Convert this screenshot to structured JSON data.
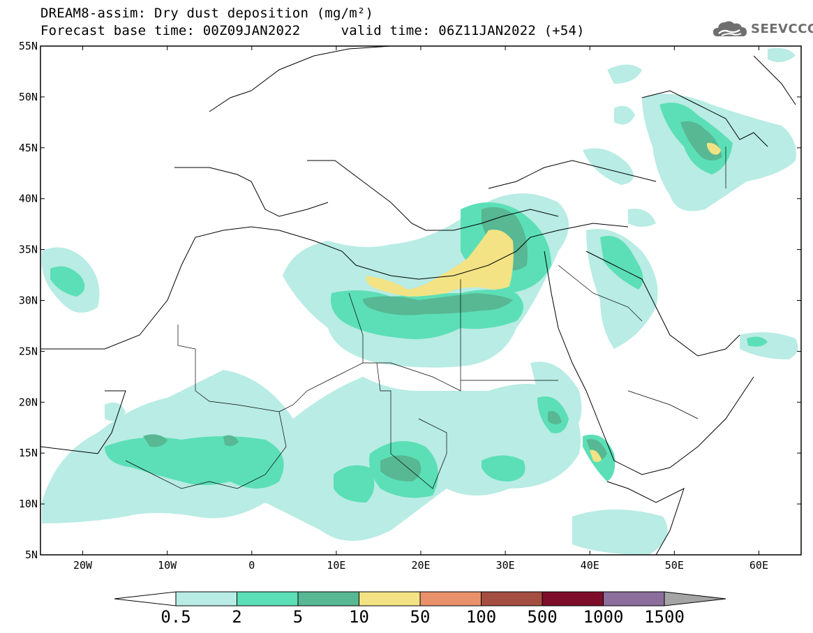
{
  "title": {
    "line1": "DREAM8-assim: Dry dust deposition (mg/m²)",
    "line2": "Forecast base time: 00Z09JAN2022     valid time: 06Z11JAN2022 (+54)"
  },
  "brand": {
    "name": "SEEVCCC",
    "icon": "cloud-logo-icon"
  },
  "map": {
    "lon_range": [
      -25,
      65
    ],
    "lat_range": [
      5,
      55
    ],
    "lon_ticks": [
      "20W",
      "10W",
      "0",
      "10E",
      "20E",
      "30E",
      "40E",
      "50E",
      "60E"
    ],
    "lat_ticks": [
      "5N",
      "10N",
      "15N",
      "20N",
      "25N",
      "30N",
      "35N",
      "40N",
      "45N",
      "50N",
      "55N"
    ]
  },
  "colorbar": {
    "levels": [
      "0.5",
      "2",
      "5",
      "10",
      "50",
      "100",
      "500",
      "1000",
      "1500"
    ],
    "colors": [
      "#b8ece4",
      "#5cdfb6",
      "#57b893",
      "#f3e384",
      "#e9916a",
      "#a44e42",
      "#7d0d2a",
      "#8b6e9c"
    ],
    "under_color": "#ffffff",
    "over_color": "#a5a5a5"
  },
  "colors": {
    "frame": "#000000",
    "border": "#000000"
  }
}
